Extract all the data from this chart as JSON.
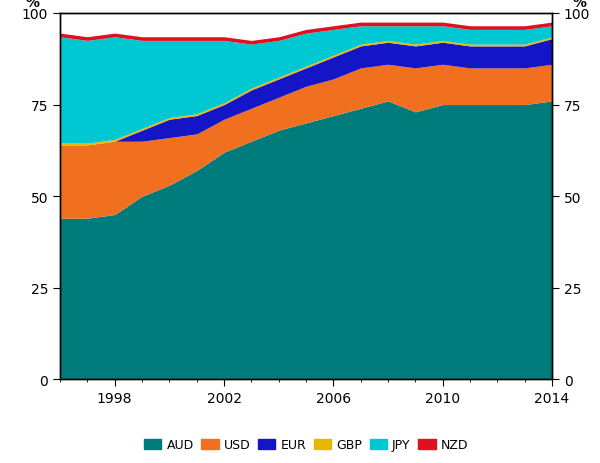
{
  "years": [
    1996,
    1997,
    1998,
    1999,
    2000,
    2001,
    2002,
    2003,
    2004,
    2005,
    2006,
    2007,
    2008,
    2009,
    2010,
    2011,
    2012,
    2013,
    2014
  ],
  "AUD": [
    44,
    44,
    45,
    50,
    53,
    57,
    62,
    65,
    68,
    70,
    72,
    74,
    76,
    73,
    75,
    75,
    75,
    75,
    76
  ],
  "USD": [
    20,
    20,
    20,
    15,
    13,
    10,
    9,
    9,
    9,
    10,
    10,
    11,
    10,
    12,
    11,
    10,
    10,
    10,
    10
  ],
  "EUR": [
    0,
    0,
    0,
    3,
    5,
    5,
    4,
    5,
    5,
    5,
    6,
    6,
    6,
    6,
    6,
    6,
    6,
    6,
    7
  ],
  "GBP": [
    0.5,
    0.5,
    0.5,
    0.5,
    0.5,
    0.5,
    0.5,
    0.5,
    0.5,
    0.5,
    0.5,
    0.5,
    0.5,
    0.5,
    0.5,
    0.5,
    0.5,
    0.5,
    0.5
  ],
  "JPY": [
    29,
    28,
    28,
    24,
    21,
    20,
    17,
    12,
    10,
    9,
    7,
    5,
    4,
    5,
    4,
    4,
    4,
    4,
    3
  ],
  "NZD": [
    1,
    1,
    1,
    1,
    1,
    1,
    1,
    1,
    1,
    1,
    1,
    1,
    1,
    1,
    1,
    1,
    1,
    1,
    1
  ],
  "colors": {
    "AUD": "#007b7b",
    "USD": "#f07020",
    "EUR": "#1515c8",
    "GBP": "#e8b800",
    "JPY": "#00c8d2",
    "NZD": "#e01020"
  },
  "ylim": [
    0,
    100
  ],
  "yticks": [
    0,
    25,
    50,
    75,
    100
  ],
  "xticks": [
    1998,
    2002,
    2006,
    2010,
    2014
  ],
  "series_order": [
    "AUD",
    "USD",
    "EUR",
    "GBP",
    "JPY",
    "NZD"
  ]
}
